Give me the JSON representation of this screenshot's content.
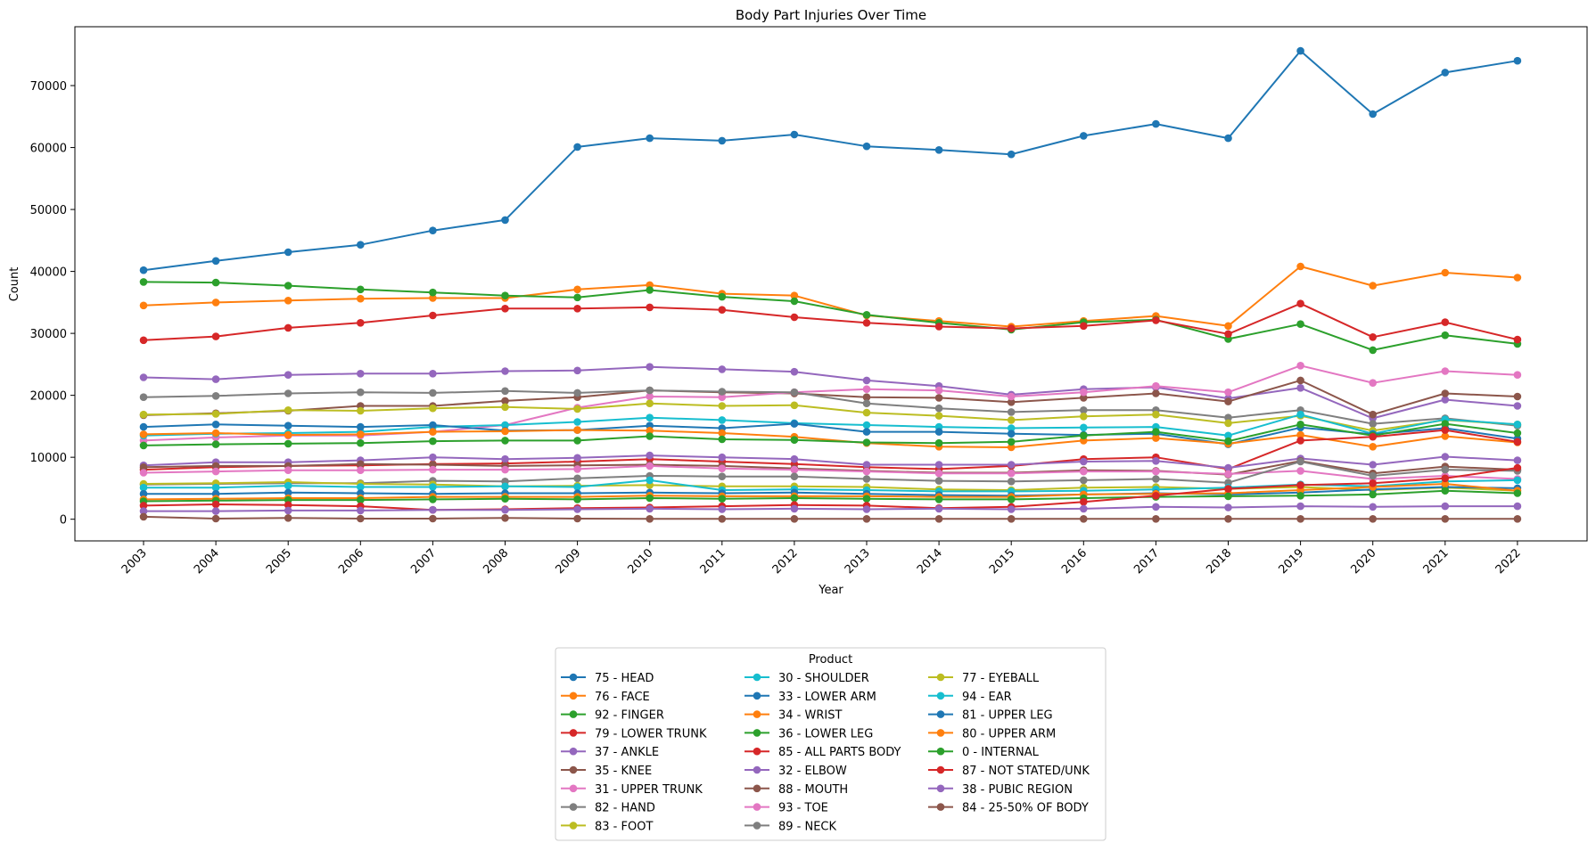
{
  "chart_data": {
    "type": "line",
    "title": "Body Part Injuries Over Time",
    "xlabel": "Year",
    "ylabel": "Count",
    "ylim": [
      -3500,
      79500
    ],
    "yticks": [
      0,
      10000,
      20000,
      30000,
      40000,
      50000,
      60000,
      70000
    ],
    "ytick_labels": [
      "0",
      "10000",
      "20000",
      "30000",
      "40000",
      "50000",
      "60000",
      "70000"
    ],
    "grid": false,
    "legend_title": "Product",
    "legend_position": "bottom-center",
    "categories": [
      "2003",
      "2004",
      "2005",
      "2006",
      "2007",
      "2008",
      "2009",
      "2010",
      "2011",
      "2012",
      "2013",
      "2014",
      "2015",
      "2016",
      "2017",
      "2018",
      "2019",
      "2020",
      "2021",
      "2022"
    ],
    "series": [
      {
        "name": "75 - HEAD",
        "color": "#1f77b4",
        "values": [
          40200,
          41700,
          43100,
          44300,
          46600,
          48300,
          60100,
          61500,
          61100,
          62100,
          60200,
          59600,
          58900,
          61900,
          63800,
          61500,
          75600,
          65400,
          72100,
          74000
        ]
      },
      {
        "name": "76 - FACE",
        "color": "#ff7f0e",
        "values": [
          34500,
          35000,
          35300,
          35600,
          35700,
          35700,
          37100,
          37800,
          36400,
          36100,
          32900,
          32000,
          31100,
          32000,
          32800,
          31200,
          40800,
          37700,
          39800,
          39000
        ]
      },
      {
        "name": "92 - FINGER",
        "color": "#2ca02c",
        "values": [
          38300,
          38200,
          37700,
          37100,
          36600,
          36100,
          35800,
          37000,
          35900,
          35200,
          33000,
          31700,
          30600,
          31800,
          32200,
          29100,
          31500,
          27300,
          29700,
          28300
        ]
      },
      {
        "name": "79 - LOWER TRUNK",
        "color": "#d62728",
        "values": [
          28900,
          29500,
          30900,
          31700,
          32900,
          34000,
          34000,
          34200,
          33800,
          32600,
          31700,
          31100,
          30800,
          31200,
          32100,
          29900,
          34800,
          29400,
          31800,
          29000
        ]
      },
      {
        "name": "37 - ANKLE",
        "color": "#9467bd",
        "values": [
          22900,
          22600,
          23300,
          23500,
          23500,
          23900,
          24000,
          24600,
          24200,
          23800,
          22400,
          21500,
          20100,
          21000,
          21300,
          19500,
          21200,
          16300,
          19300,
          18300
        ]
      },
      {
        "name": "35 - KNEE",
        "color": "#8c564b",
        "values": [
          16800,
          17100,
          17500,
          18300,
          18300,
          19100,
          19700,
          20800,
          20500,
          20300,
          19700,
          19600,
          18900,
          19600,
          20300,
          19000,
          22400,
          16900,
          20300,
          19800
        ]
      },
      {
        "name": "31 - UPPER TRUNK",
        "color": "#e377c2",
        "values": [
          12700,
          13200,
          13500,
          13500,
          14100,
          15200,
          18000,
          19800,
          19700,
          20500,
          21000,
          20800,
          19800,
          20500,
          21500,
          20500,
          24800,
          22000,
          23900,
          23300
        ]
      },
      {
        "name": "82 - HAND",
        "color": "#7f7f7f",
        "values": [
          19700,
          19900,
          20300,
          20500,
          20400,
          20700,
          20400,
          20800,
          20600,
          20500,
          18700,
          17900,
          17300,
          17600,
          17600,
          16400,
          17600,
          15400,
          16300,
          15100
        ]
      },
      {
        "name": "83 - FOOT",
        "color": "#bcbd22",
        "values": [
          16900,
          17000,
          17600,
          17500,
          17900,
          18100,
          17800,
          18700,
          18300,
          18400,
          17200,
          16700,
          16000,
          16600,
          16900,
          15500,
          16700,
          14300,
          16000,
          15300
        ]
      },
      {
        "name": "30 - SHOULDER",
        "color": "#17becf",
        "values": [
          13500,
          13800,
          13900,
          14100,
          14900,
          15200,
          15700,
          16400,
          16000,
          15500,
          15200,
          14900,
          14700,
          14800,
          14900,
          13500,
          16900,
          13800,
          16100,
          15300
        ]
      },
      {
        "name": "33 - LOWER ARM",
        "color": "#1f77b4",
        "values": [
          14900,
          15300,
          15100,
          14900,
          15200,
          14300,
          14400,
          15100,
          14700,
          15400,
          14100,
          14100,
          13800,
          13600,
          13800,
          12100,
          14800,
          13700,
          14700,
          13000
        ]
      },
      {
        "name": "34 - WRIST",
        "color": "#ff7f0e",
        "values": [
          13700,
          13900,
          13600,
          13700,
          14100,
          14200,
          14400,
          14300,
          13900,
          13300,
          12300,
          11700,
          11600,
          12700,
          13100,
          12200,
          13600,
          11700,
          13400,
          12400
        ]
      },
      {
        "name": "36 - LOWER LEG",
        "color": "#2ca02c",
        "values": [
          11900,
          12100,
          12200,
          12300,
          12600,
          12700,
          12700,
          13400,
          12900,
          12800,
          12400,
          12300,
          12500,
          13500,
          14100,
          12600,
          15300,
          13500,
          15400,
          13900
        ]
      },
      {
        "name": "85 - ALL PARTS BODY",
        "color": "#d62728",
        "values": [
          8000,
          8400,
          8600,
          8700,
          8900,
          9000,
          9300,
          9700,
          9300,
          8900,
          8400,
          8100,
          8600,
          9700,
          10000,
          8100,
          12700,
          13300,
          14400,
          12500
        ]
      },
      {
        "name": "32 - ELBOW",
        "color": "#9467bd",
        "values": [
          8700,
          9200,
          9200,
          9500,
          10000,
          9700,
          9900,
          10300,
          10000,
          9700,
          8800,
          8800,
          8800,
          9300,
          9400,
          8300,
          9800,
          8800,
          10100,
          9500
        ]
      },
      {
        "name": "88 - MOUTH",
        "color": "#8c564b",
        "values": [
          8400,
          8600,
          8600,
          8900,
          8800,
          8600,
          8700,
          8800,
          8600,
          8200,
          7800,
          7500,
          7500,
          7900,
          7800,
          7200,
          9400,
          7400,
          8500,
          8000
        ]
      },
      {
        "name": "93 - TOE",
        "color": "#e377c2",
        "values": [
          7500,
          7700,
          7900,
          7900,
          8000,
          8000,
          8100,
          8600,
          8200,
          8000,
          7700,
          7400,
          7400,
          7700,
          7700,
          7300,
          7800,
          6500,
          7000,
          6500
        ]
      },
      {
        "name": "89 - NECK",
        "color": "#7f7f7f",
        "values": [
          5600,
          5700,
          5800,
          5800,
          6200,
          6100,
          6600,
          7000,
          6900,
          6900,
          6500,
          6200,
          6100,
          6300,
          6500,
          5900,
          9300,
          7000,
          8000,
          7800
        ]
      },
      {
        "name": "77 - EYEBALL",
        "color": "#bcbd22",
        "values": [
          5700,
          5800,
          6000,
          5700,
          5600,
          5300,
          5400,
          5500,
          5300,
          5300,
          5200,
          4800,
          4700,
          5100,
          5200,
          4900,
          5200,
          4700,
          5100,
          4600
        ]
      },
      {
        "name": "94 - EAR",
        "color": "#17becf",
        "values": [
          5100,
          5100,
          5400,
          5200,
          5200,
          5300,
          5200,
          6300,
          4700,
          4800,
          4700,
          4500,
          4500,
          4600,
          4800,
          5100,
          5600,
          5300,
          6100,
          6300
        ]
      },
      {
        "name": "81 - UPPER LEG",
        "color": "#1f77b4",
        "values": [
          4100,
          4100,
          4300,
          4200,
          4100,
          4200,
          4200,
          4300,
          4200,
          4300,
          4100,
          3900,
          3800,
          4000,
          4200,
          4000,
          4300,
          4800,
          5200,
          5000
        ]
      },
      {
        "name": "80 - UPPER ARM",
        "color": "#ff7f0e",
        "values": [
          3200,
          3300,
          3400,
          3400,
          3600,
          3600,
          3600,
          3800,
          3700,
          3700,
          3700,
          3600,
          3600,
          4000,
          4100,
          4200,
          4700,
          5200,
          5700,
          4600
        ]
      },
      {
        "name": "0 - INTERNAL",
        "color": "#2ca02c",
        "values": [
          2900,
          3000,
          3100,
          3100,
          3200,
          3300,
          3200,
          3400,
          3300,
          3400,
          3300,
          3200,
          3200,
          3400,
          3600,
          3700,
          3800,
          4000,
          4600,
          4200
        ]
      },
      {
        "name": "87 - NOT STATED/UNK",
        "color": "#d62728",
        "values": [
          2200,
          2400,
          2300,
          2100,
          1500,
          1600,
          1800,
          1900,
          2100,
          2300,
          2200,
          1800,
          2000,
          2800,
          3800,
          4900,
          5500,
          5800,
          6600,
          8300
        ]
      },
      {
        "name": "38 - PUBIC REGION",
        "color": "#9467bd",
        "values": [
          1300,
          1300,
          1400,
          1400,
          1500,
          1500,
          1600,
          1700,
          1600,
          1700,
          1600,
          1700,
          1600,
          1700,
          2000,
          1900,
          2100,
          2000,
          2100,
          2100
        ]
      },
      {
        "name": "84 - 25-50% OF BODY",
        "color": "#8c564b",
        "values": [
          400,
          100,
          200,
          100,
          100,
          200,
          100,
          50,
          50,
          50,
          50,
          50,
          50,
          50,
          50,
          50,
          50,
          50,
          50,
          50
        ]
      }
    ]
  }
}
